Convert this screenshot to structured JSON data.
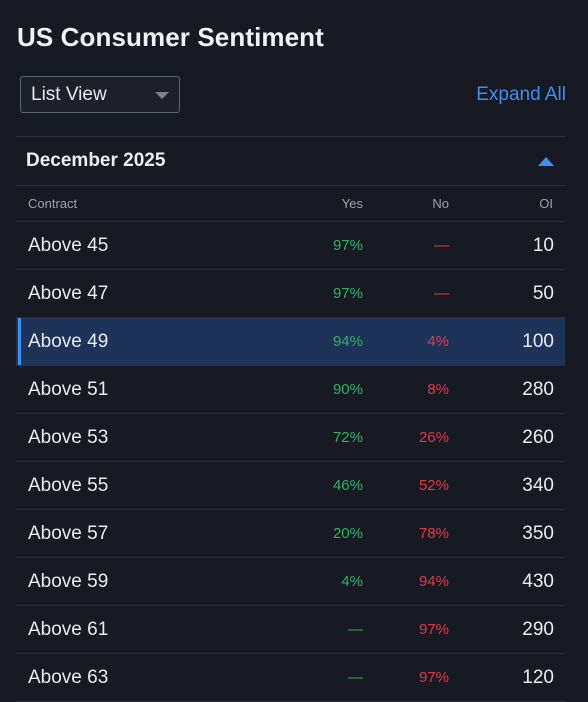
{
  "page": {
    "title": "US Consumer Sentiment"
  },
  "controls": {
    "view_select_value": "List View",
    "expand_all_label": "Expand All"
  },
  "group": {
    "month": "December 2025",
    "columns": {
      "contract": "Contract",
      "yes": "Yes",
      "no": "No",
      "oi": "OI"
    },
    "rows": [
      {
        "contract": "Above 45",
        "yes": "97%",
        "no": "—",
        "oi": "10"
      },
      {
        "contract": "Above 47",
        "yes": "97%",
        "no": "—",
        "oi": "50"
      },
      {
        "contract": "Above 49",
        "yes": "94%",
        "no": "4%",
        "oi": "100"
      },
      {
        "contract": "Above 51",
        "yes": "90%",
        "no": "8%",
        "oi": "280"
      },
      {
        "contract": "Above 53",
        "yes": "72%",
        "no": "26%",
        "oi": "260"
      },
      {
        "contract": "Above 55",
        "yes": "46%",
        "no": "52%",
        "oi": "340"
      },
      {
        "contract": "Above 57",
        "yes": "20%",
        "no": "78%",
        "oi": "350"
      },
      {
        "contract": "Above 59",
        "yes": "4%",
        "no": "94%",
        "oi": "430"
      },
      {
        "contract": "Above 61",
        "yes": "—",
        "no": "97%",
        "oi": "290"
      },
      {
        "contract": "Above 63",
        "yes": "—",
        "no": "97%",
        "oi": "120"
      }
    ],
    "selected_row": "Above 49"
  },
  "colors": {
    "background": "#171a22",
    "accent": "#3d8ff0",
    "yes": "#2fb264",
    "no": "#e0394e",
    "selected_row_bg": "#1e3358"
  },
  "icons": {
    "view_select_caret": "chevron-down-icon",
    "collapse_group": "caret-up-icon"
  }
}
